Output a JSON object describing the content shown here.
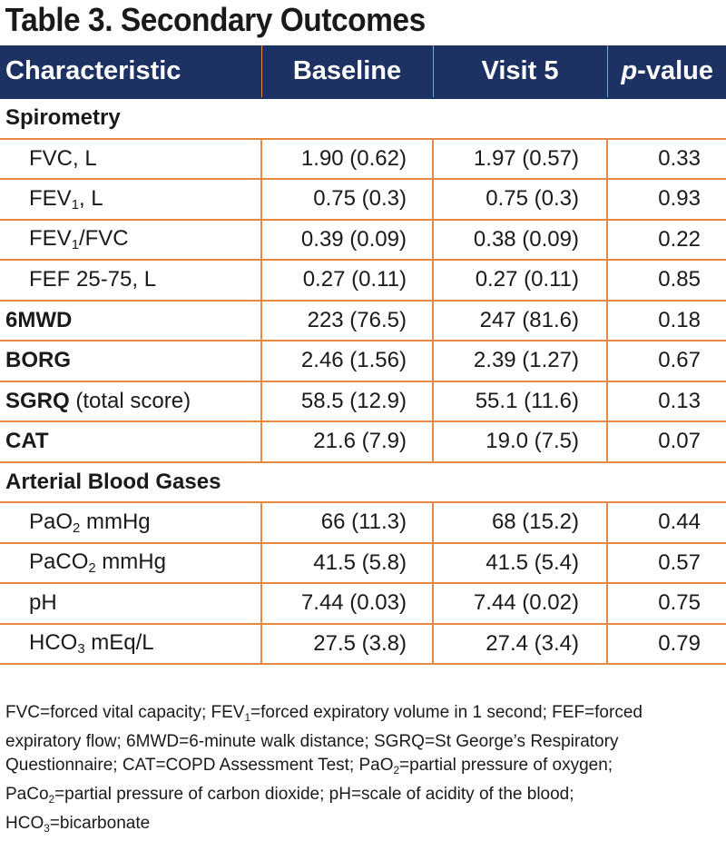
{
  "title": "Table 3. Secondary Outcomes",
  "header": {
    "characteristic": "Characteristic",
    "baseline": "Baseline",
    "visit5": "Visit 5",
    "p_italic": "p",
    "p_rest": "-value"
  },
  "sections": {
    "spirometry": "Spirometry",
    "abg": "Arterial Blood Gases"
  },
  "rows": {
    "fvc": {
      "label": "FVC, L",
      "baseline": "1.90 (0.62)",
      "visit5": "1.97 (0.57)",
      "p": "0.33"
    },
    "fev1": {
      "label_a": "FEV",
      "label_sub": "1",
      "label_b": ", L",
      "baseline": "0.75 (0.3)",
      "visit5": "0.75 (0.3)",
      "p": "0.93"
    },
    "fev1fvc": {
      "label_a": "FEV",
      "label_sub": "1",
      "label_b": "/FVC",
      "baseline": "0.39 (0.09)",
      "visit5": "0.38 (0.09)",
      "p": "0.22"
    },
    "fef": {
      "label": "FEF 25-75, L",
      "baseline": "0.27 (0.11)",
      "visit5": "0.27 (0.11)",
      "p": "0.85"
    },
    "smwd": {
      "label": "6MWD",
      "baseline": "223 (76.5)",
      "visit5": "247 (81.6)",
      "p": "0.18"
    },
    "borg": {
      "label": "BORG",
      "baseline": "2.46 (1.56)",
      "visit5": "2.39 (1.27)",
      "p": "0.67"
    },
    "sgrq": {
      "label_bold": "SGRQ",
      "label_rest": " (total score)",
      "baseline": "58.5 (12.9)",
      "visit5": "55.1 (11.6)",
      "p": "0.13"
    },
    "cat": {
      "label": "CAT",
      "baseline": "21.6 (7.9)",
      "visit5": "19.0 (7.5)",
      "p": "0.07"
    },
    "pao2": {
      "label_a": "PaO",
      "label_sub": "2",
      "label_b": " mmHg",
      "baseline": "66 (11.3)",
      "visit5": "68 (15.2)",
      "p": "0.44"
    },
    "paco2": {
      "label_a": "PaCO",
      "label_sub": "2",
      "label_b": " mmHg",
      "baseline": "41.5 (5.8)",
      "visit5": "41.5 (5.4)",
      "p": "0.57"
    },
    "ph": {
      "label": "pH",
      "baseline": "7.44 (0.03)",
      "visit5": "7.44 (0.02)",
      "p": "0.75"
    },
    "hco3": {
      "label_a": "HCO",
      "label_sub": "3",
      "label_b": " mEq/L",
      "baseline": "27.5 (3.8)",
      "visit5": "27.4 (3.4)",
      "p": "0.79"
    }
  },
  "footnote": {
    "t1": "FVC=forced vital capacity; FEV",
    "s1": "1",
    "t2": "=forced expiratory volume in 1 second; FEF=forced expiratory flow; 6MWD=6-minute walk distance; SGRQ=St George’s Respiratory Questionnaire; CAT=COPD Assessment Test; PaO",
    "s2": "2",
    "t3": "=partial pressure of oxygen; PaCo",
    "s3": "2",
    "t4": "=partial pressure of carbon dioxide; pH=scale of acidity of the blood; HCO",
    "s4": "3",
    "t5": "=bicarbonate"
  },
  "colors": {
    "header_bg": "#1d3262",
    "rule": "#e58a42",
    "text": "#1a1a1a"
  }
}
